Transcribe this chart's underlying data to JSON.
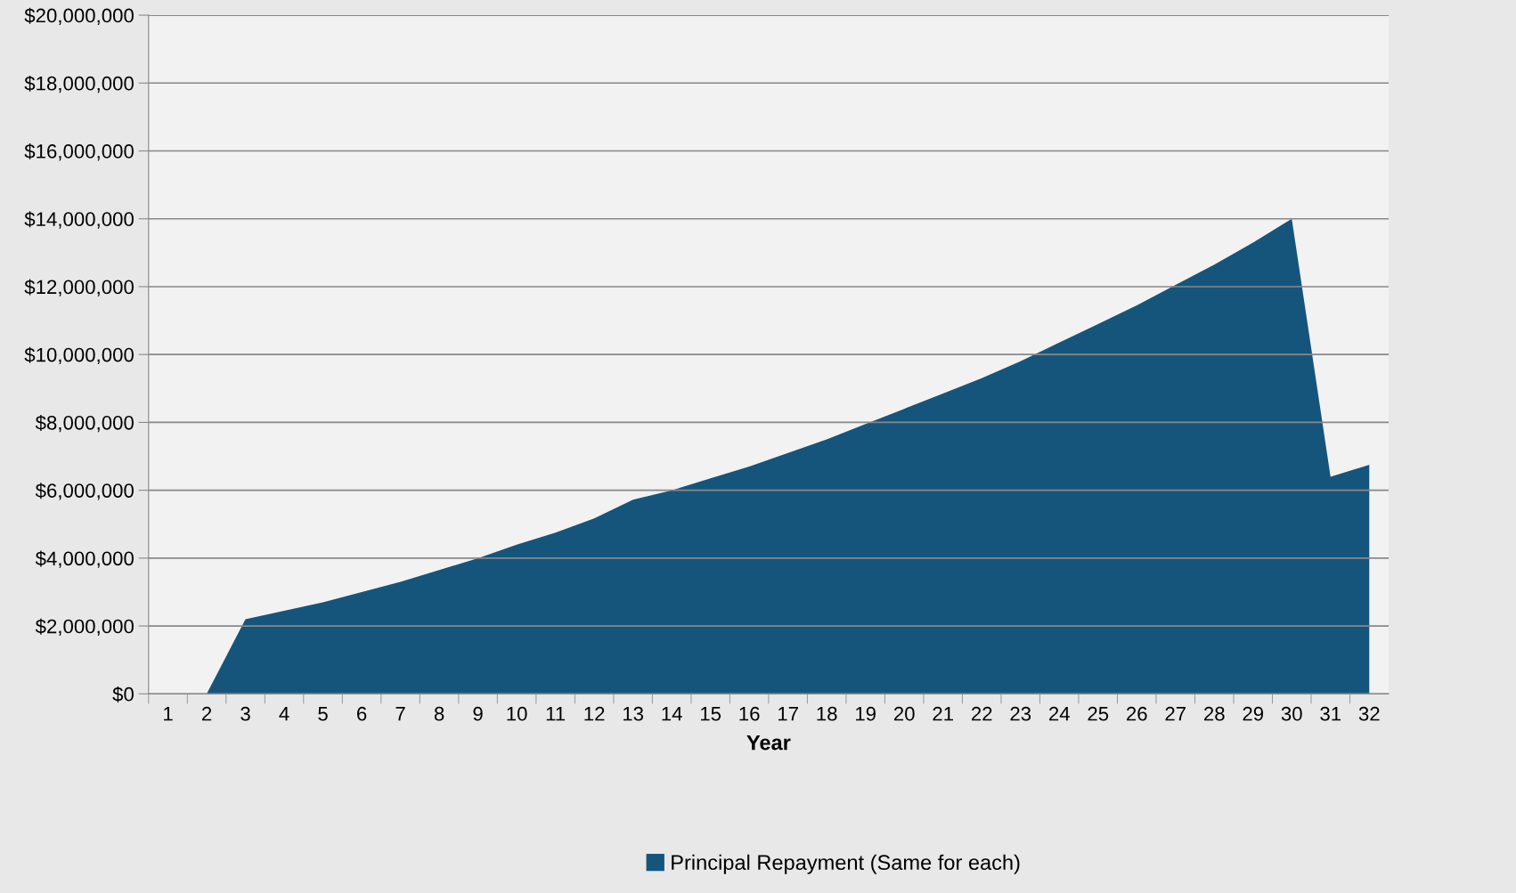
{
  "chart_data": {
    "type": "area",
    "xlabel": "Year",
    "categories": [
      "1",
      "2",
      "3",
      "4",
      "5",
      "6",
      "7",
      "8",
      "9",
      "10",
      "11",
      "12",
      "13",
      "14",
      "15",
      "16",
      "17",
      "18",
      "19",
      "20",
      "21",
      "22",
      "23",
      "24",
      "25",
      "26",
      "27",
      "28",
      "29",
      "30",
      "31",
      "32"
    ],
    "series": [
      {
        "name": "Principal Repayment (Same for each)",
        "color": "#15557c",
        "values": [
          0,
          0,
          2200000,
          2450000,
          2700000,
          3000000,
          3300000,
          3650000,
          4000000,
          4400000,
          4750000,
          5170000,
          5720000,
          6000000,
          6350000,
          6700000,
          7100000,
          7500000,
          7950000,
          8400000,
          8850000,
          9300000,
          9800000,
          10350000,
          10900000,
          11450000,
          12050000,
          12650000,
          13300000,
          14000000,
          6400000,
          6750000
        ]
      }
    ],
    "ylim": [
      0,
      20000000
    ],
    "yticks": [
      {
        "value": 0,
        "label": "$0"
      },
      {
        "value": 2000000,
        "label": "$2,000,000"
      },
      {
        "value": 4000000,
        "label": "$4,000,000"
      },
      {
        "value": 6000000,
        "label": "$6,000,000"
      },
      {
        "value": 8000000,
        "label": "$8,000,000"
      },
      {
        "value": 10000000,
        "label": "$10,000,000"
      },
      {
        "value": 12000000,
        "label": "$12,000,000"
      },
      {
        "value": 14000000,
        "label": "$14,000,000"
      },
      {
        "value": 16000000,
        "label": "$16,000,000"
      },
      {
        "value": 18000000,
        "label": "$18,000,000"
      },
      {
        "value": 20000000,
        "label": "$20,000,000"
      }
    ],
    "grid": "y",
    "legend": "bottom"
  }
}
